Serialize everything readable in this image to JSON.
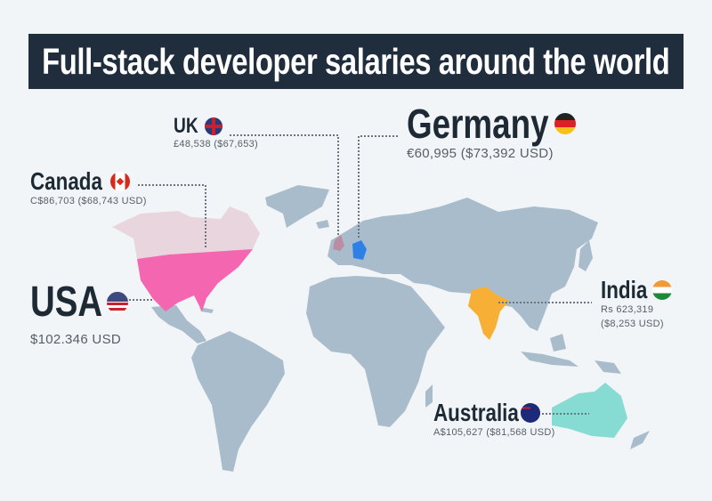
{
  "title": "Full-stack developer salaries around the world",
  "colors": {
    "background": "#f2f5f7",
    "title_bar": "#1f2d3d",
    "land": "#a9bccb",
    "usa": "#f566b0",
    "canada": "#e9d5de",
    "uk": "#b98ea2",
    "germany": "#2f80e6",
    "india": "#f7b035",
    "australia": "#86dcd2"
  },
  "countries": {
    "uk": {
      "name": "UK",
      "salary": "£48,538 ($67,653)",
      "flag_icon": "uk-flag-icon"
    },
    "germany": {
      "name": "Germany",
      "salary": "€60,995 ($73,392 USD)",
      "flag_icon": "germany-flag-icon"
    },
    "canada": {
      "name": "Canada",
      "salary": "C$86,703 ($68,743 USD)",
      "flag_icon": "canada-flag-icon"
    },
    "usa": {
      "name": "USA",
      "salary": "$102.346 USD",
      "flag_icon": "usa-flag-icon"
    },
    "india": {
      "name": "India",
      "salary_line1": "Rs 623,319",
      "salary_line2": "($8,253 USD)",
      "flag_icon": "india-flag-icon"
    },
    "australia": {
      "name": "Australia",
      "salary": "A$105,627 ($81,568 USD)",
      "flag_icon": "australia-flag-icon"
    }
  }
}
